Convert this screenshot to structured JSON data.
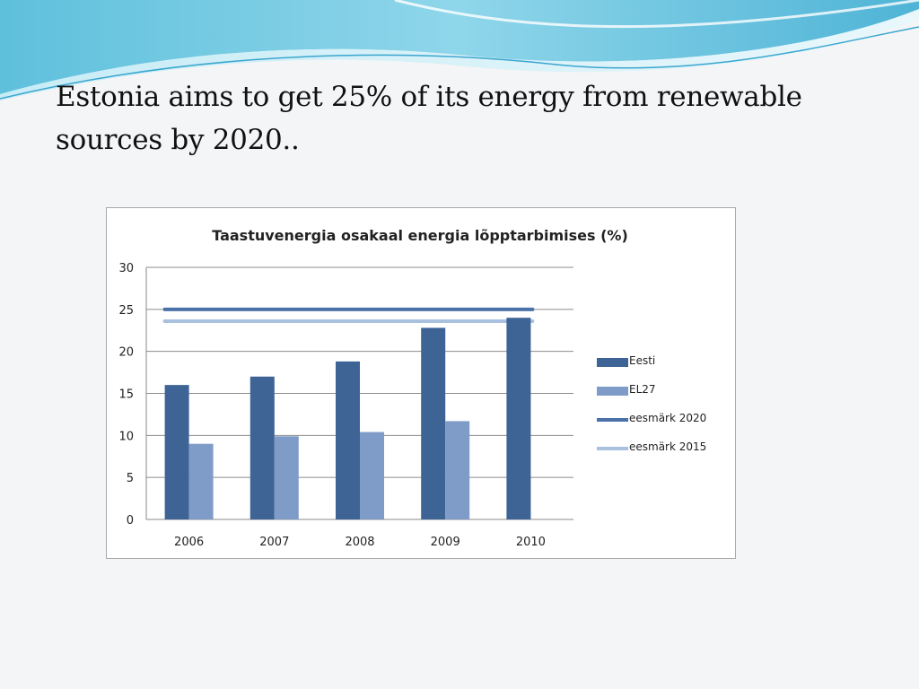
{
  "slide": {
    "headline": "Estonia aims to get 25% of its energy from renewable sources by 2020.."
  },
  "chart_data": {
    "type": "bar",
    "title": "Taastuvenergia osakaal energia lõpptarbimises (%)",
    "xlabel": "",
    "ylabel": "",
    "categories": [
      "2006",
      "2007",
      "2008",
      "2009",
      "2010"
    ],
    "ylim": [
      0,
      30
    ],
    "yticks": [
      0,
      5,
      10,
      15,
      20,
      25,
      30
    ],
    "grid": true,
    "legend_position": "right",
    "series": [
      {
        "name": "Eesti",
        "kind": "bar",
        "color": "#3e6395",
        "values": [
          16,
          17,
          18.8,
          22.8,
          24
        ]
      },
      {
        "name": "EL27",
        "kind": "bar",
        "color": "#7f9cc8",
        "values": [
          9,
          9.9,
          10.4,
          11.7,
          null
        ]
      }
    ],
    "reference_lines": [
      {
        "name": "eesmärk 2020",
        "value": 25,
        "color": "#4a72a9"
      },
      {
        "name": "eesmärk 2015",
        "value": 23.6,
        "color": "#a9c1df"
      }
    ]
  }
}
